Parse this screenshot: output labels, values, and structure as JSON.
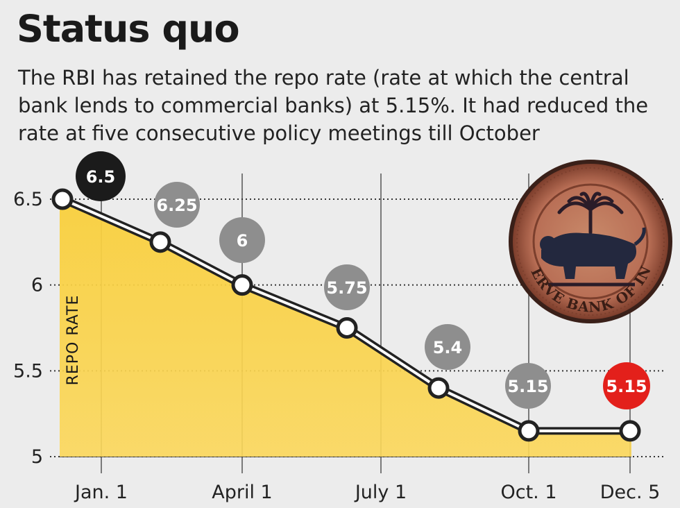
{
  "header": {
    "title": "Status quo",
    "subtitle": "The RBI has retained the repo rate (rate at which the central bank lends to commercial banks) at 5.15%. It had reduced the rate at five consecutive policy meetings till October"
  },
  "seal_text": "RESERVE BANK OF INDIA",
  "colors": {
    "area": "#f9cf3c",
    "line": "#222222",
    "label_default": "#8e8e8e",
    "label_first": "#1b1b1b",
    "label_last": "#e3201b"
  },
  "chart_data": {
    "type": "area",
    "ylabel": "REPO RATE",
    "ylim": [
      5,
      6.5
    ],
    "yticks": [
      5,
      5.5,
      6,
      6.5
    ],
    "ytick_labels": [
      "5",
      "5.5",
      "6",
      "6.5"
    ],
    "xtick_labels": [
      "Jan. 1",
      "April 1",
      "July 1",
      "Oct. 1",
      "Dec. 5"
    ],
    "points": [
      {
        "value": 6.5,
        "label": "6.5"
      },
      {
        "value": 6.25,
        "label": "6.25"
      },
      {
        "value": 6.0,
        "label": "6"
      },
      {
        "value": 5.75,
        "label": "5.75"
      },
      {
        "value": 5.4,
        "label": "5.4"
      },
      {
        "value": 5.15,
        "label": "5.15"
      },
      {
        "value": 5.15,
        "label": "5.15"
      }
    ],
    "grid": "dotted horizontal lines at y ticks, vertical lines at x ticks"
  }
}
